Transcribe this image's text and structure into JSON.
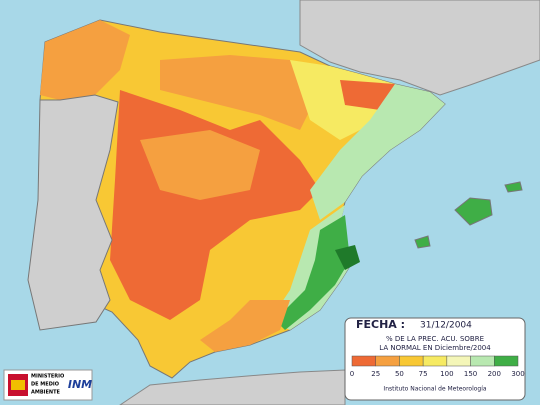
{
  "header": {
    "date_label": "FECHA :",
    "date": "31/12/2004"
  },
  "legend": {
    "title_lines": [
      "% DE LA PREC. ACU. SOBRE",
      "LA NORMAL EN Diciembre/2004"
    ],
    "ticks": [
      "0",
      "25",
      "50",
      "75",
      "100",
      "150",
      "200",
      "300"
    ],
    "colors": [
      "#ee6a35",
      "#f5a040",
      "#f8c834",
      "#f6ea62",
      "#f4f6b8",
      "#b8e8b0",
      "#3fae46"
    ]
  },
  "footer": {
    "institute": "Instituto Nacional de Meteorología"
  },
  "logos": {
    "ministry": [
      "MINISTERIO",
      "DE MEDIO",
      "AMBIENTE"
    ],
    "agency": "INM"
  }
}
